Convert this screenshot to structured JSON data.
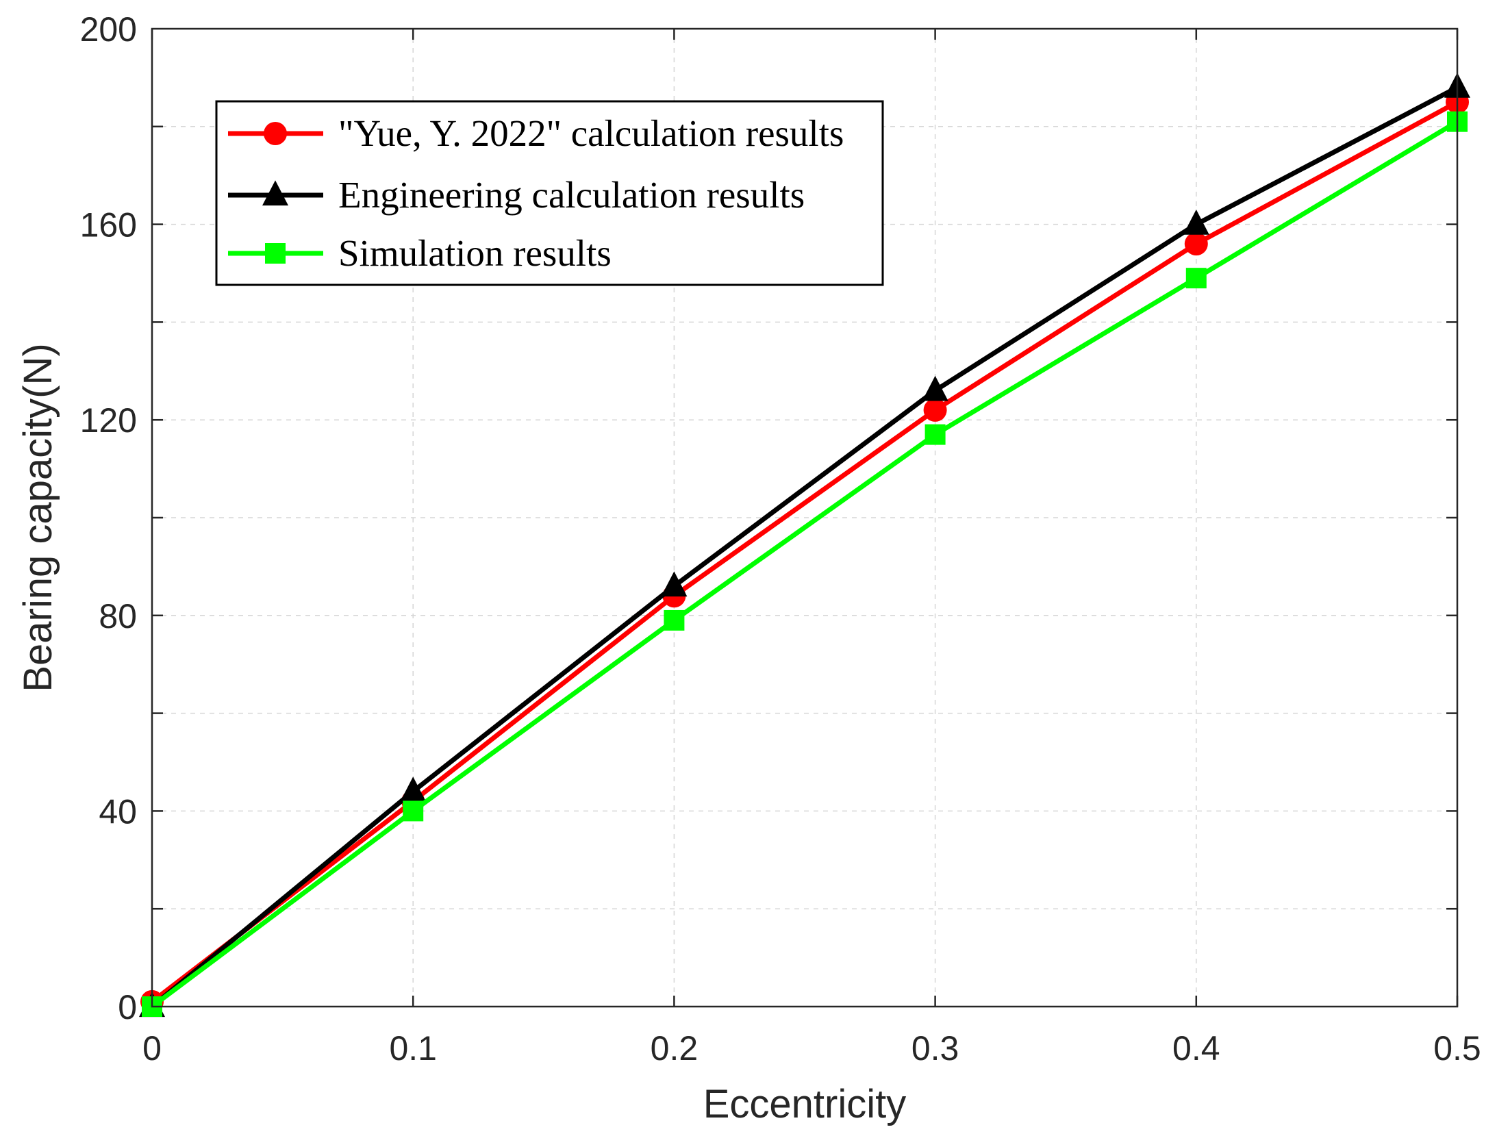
{
  "chart_data": {
    "type": "line",
    "title": "",
    "xlabel": "Eccentricity",
    "ylabel": "Bearing capacity(N)",
    "x": [
      0,
      0.1,
      0.2,
      0.3,
      0.4,
      0.5
    ],
    "xlim": [
      0,
      0.5
    ],
    "ylim": [
      0,
      200
    ],
    "xticks": [
      0,
      0.1,
      0.2,
      0.3,
      0.4,
      0.5
    ],
    "xtick_labels": [
      "0",
      "0.1",
      "0.2",
      "0.3",
      "0.4",
      "0.5"
    ],
    "yticks": [
      0,
      40,
      80,
      120,
      160,
      200
    ],
    "ytick_labels": [
      "0",
      "40",
      "80",
      "120",
      "160",
      "200"
    ],
    "grid": true,
    "legend_position": "top-left",
    "series": [
      {
        "name": "\"Yue, Y. 2022\" calculation results",
        "color": "#ff0000",
        "marker": "circle",
        "values": [
          1,
          42,
          84,
          122,
          156,
          185
        ]
      },
      {
        "name": "Engineering calculation results",
        "color": "#000000",
        "marker": "triangle",
        "values": [
          0,
          44,
          86,
          126,
          160,
          188
        ]
      },
      {
        "name": "Simulation results",
        "color": "#00ff00",
        "marker": "square",
        "values": [
          0,
          40,
          79,
          117,
          149,
          181
        ]
      }
    ]
  }
}
